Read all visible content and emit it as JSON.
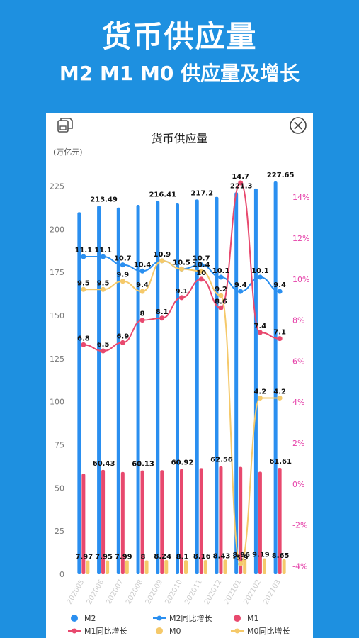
{
  "hero": {
    "title": "货币供应量",
    "subtitle": "M2 M1 M0 供应量及增长"
  },
  "card": {
    "save_icon": "save-image-icon",
    "close_icon": "close-circle-icon"
  },
  "chart_data": {
    "type": "bar",
    "title": "货币供应量",
    "ylabel": "(万亿元)",
    "y_left": {
      "min": 0,
      "max": 237.5,
      "ticks": [
        0,
        25,
        50,
        75,
        100,
        125,
        150,
        175,
        200,
        225
      ]
    },
    "y_right": {
      "min": -4.4,
      "max": 15.6,
      "ticks": [
        "-4%",
        "-2%",
        "0%",
        "2%",
        "4%",
        "6%",
        "8%",
        "10%",
        "12%",
        "14%"
      ],
      "tick_values": [
        -4,
        -2,
        0,
        2,
        4,
        6,
        8,
        10,
        12,
        14
      ]
    },
    "categories": [
      "202005",
      "202006",
      "202007",
      "202008",
      "202009",
      "202010",
      "202011",
      "202012",
      "202101",
      "202102",
      "202103"
    ],
    "bar_series": [
      {
        "name": "M2",
        "color": "#2a8ff0",
        "values": [
          209.8,
          213.49,
          212.55,
          214.1,
          216.41,
          214.9,
          217.2,
          218.7,
          221.3,
          223.6,
          227.65
        ],
        "labels": [
          "",
          "213.49",
          "",
          "",
          "216.41",
          "",
          "217.2",
          "",
          "221.3",
          "",
          "227.65"
        ]
      },
      {
        "name": "M1",
        "color": "#e8496e",
        "values": [
          58.2,
          60.43,
          59.2,
          60.13,
          60.3,
          60.92,
          61.5,
          62.56,
          62.2,
          59.4,
          61.61
        ],
        "labels": [
          "",
          "60.43",
          "",
          "60.13",
          "",
          "60.92",
          "",
          "62.56",
          "",
          "",
          "61.61"
        ]
      },
      {
        "name": "M0",
        "color": "#f5c96a",
        "values": [
          7.97,
          7.95,
          7.99,
          8,
          8.24,
          8.1,
          8.16,
          8.43,
          8.96,
          9.19,
          8.65
        ],
        "labels": [
          "7.97",
          "7.95",
          "7.99",
          "8",
          "8.24",
          "8.1",
          "8.16",
          "8.43",
          "8.96",
          "9.19",
          "8.65"
        ]
      }
    ],
    "line_series": [
      {
        "name": "M2同比增长",
        "color": "#2a8ff0",
        "values": [
          11.1,
          11.1,
          10.7,
          10.4,
          10.9,
          10.5,
          10.7,
          10.1,
          9.4,
          10.1,
          9.4
        ]
      },
      {
        "name": "M1同比增长",
        "color": "#e8496e",
        "values": [
          6.8,
          6.5,
          6.9,
          8,
          8.1,
          9.1,
          10,
          8.6,
          14.7,
          7.4,
          7.1
        ]
      },
      {
        "name": "M0同比增长",
        "color": "#f5c96a",
        "values": [
          9.5,
          9.5,
          9.9,
          9.4,
          10.9,
          10.5,
          10.4,
          9.2,
          -3.9,
          4.2,
          4.2
        ]
      }
    ],
    "legend": [
      {
        "name": "M2",
        "color": "#2a8ff0",
        "marker": "dot"
      },
      {
        "name": "M2同比增长",
        "color": "#2a8ff0",
        "marker": "line"
      },
      {
        "name": "M1",
        "color": "#e8496e",
        "marker": "dot"
      },
      {
        "name": "M1同比增长",
        "color": "#e8496e",
        "marker": "line"
      },
      {
        "name": "M0",
        "color": "#f5c96a",
        "marker": "dot"
      },
      {
        "name": "M0同比增长",
        "color": "#f5c96a",
        "marker": "line"
      }
    ],
    "legend_position": "bottom",
    "grid": false
  }
}
